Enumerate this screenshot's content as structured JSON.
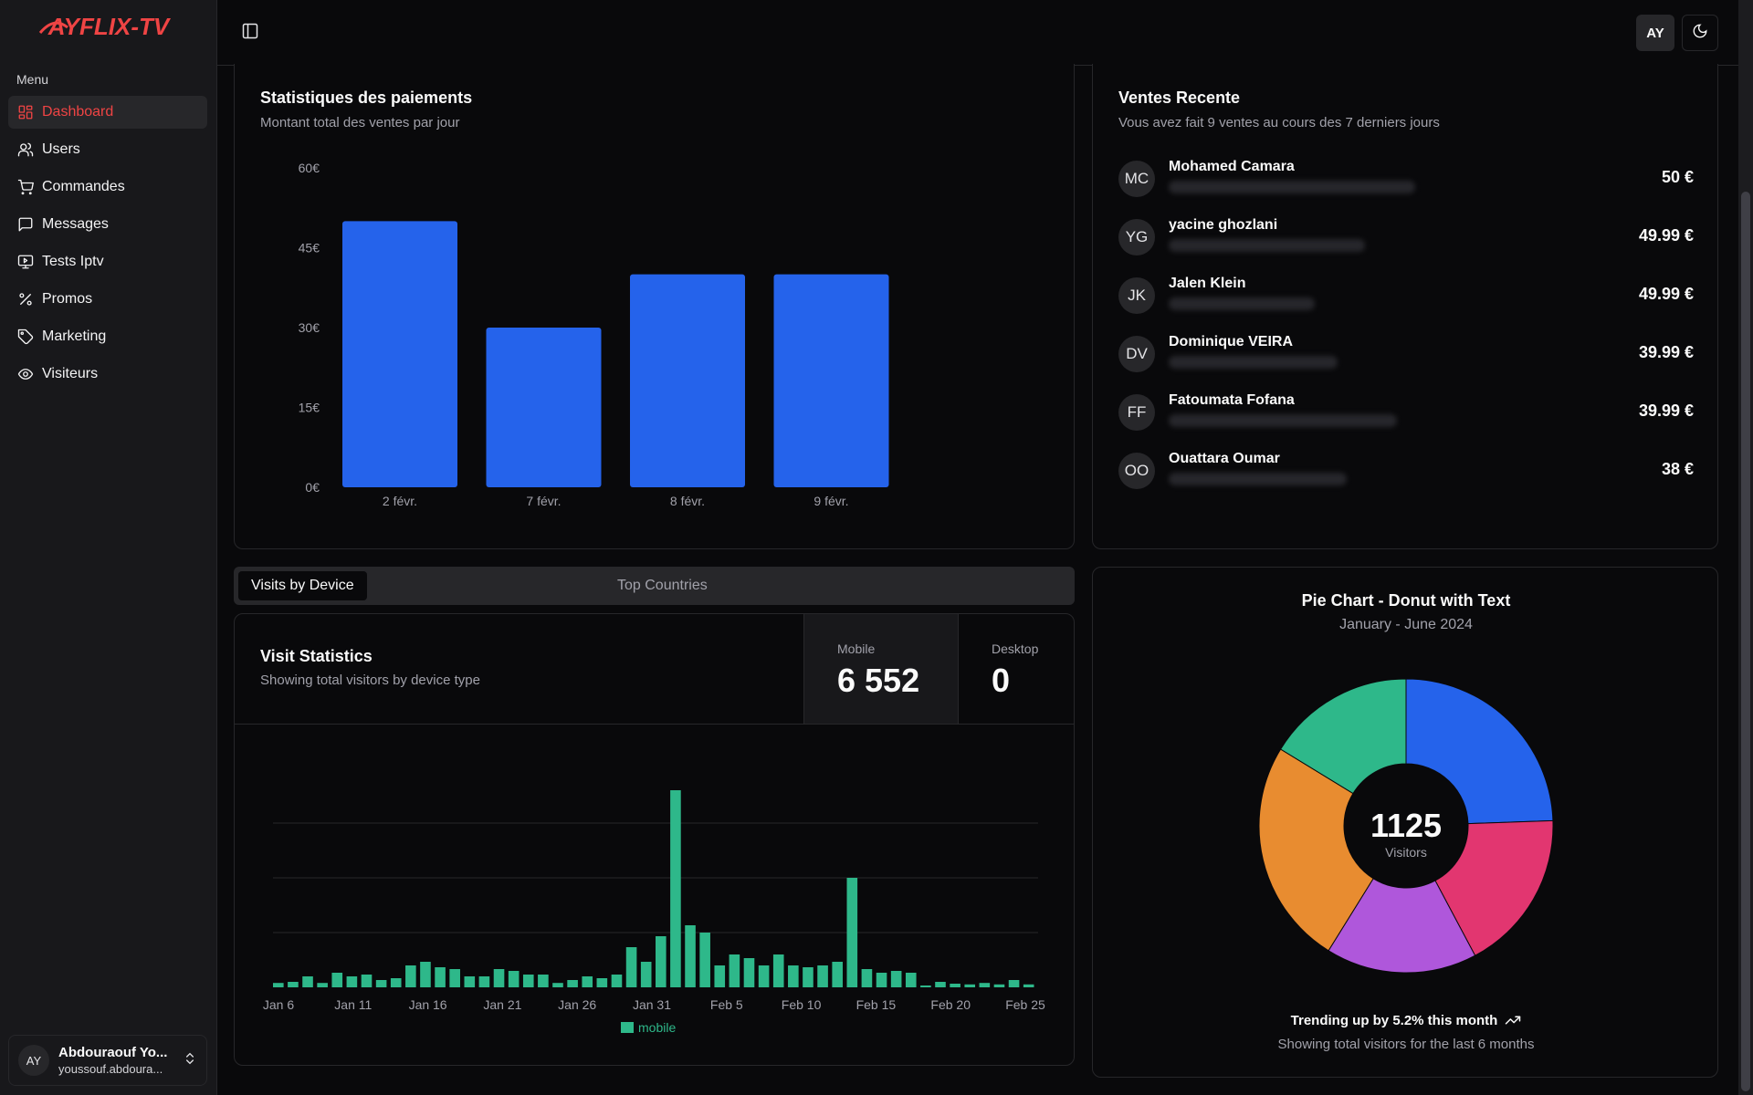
{
  "app": {
    "logo_text": "AYFLIX-TV",
    "logo_color": "#ef4444"
  },
  "sidebar": {
    "menu_title": "Menu",
    "items": [
      {
        "label": "Dashboard",
        "icon": "dashboard-icon",
        "active": true
      },
      {
        "label": "Users",
        "icon": "users-icon"
      },
      {
        "label": "Commandes",
        "icon": "cart-icon"
      },
      {
        "label": "Messages",
        "icon": "message-icon"
      },
      {
        "label": "Tests Iptv",
        "icon": "monitor-icon"
      },
      {
        "label": "Promos",
        "icon": "percent-icon"
      },
      {
        "label": "Marketing",
        "icon": "tag-icon"
      },
      {
        "label": "Visiteurs",
        "icon": "eye-icon"
      }
    ],
    "user": {
      "initials": "AY",
      "name": "Abdouraouf Yo...",
      "email": "youssouf.abdoura..."
    }
  },
  "topbar": {
    "avatar": "AY"
  },
  "payments": {
    "title": "Statistiques des paiements",
    "subtitle": "Montant total des ventes par jour",
    "chart_data": {
      "type": "bar",
      "categories": [
        "2 févr.",
        "7 févr.",
        "8 févr.",
        "9 févr."
      ],
      "values": [
        50,
        30,
        40,
        40
      ],
      "ylim": [
        0,
        60
      ],
      "yticks": [
        "0€",
        "15€",
        "30€",
        "45€",
        "60€"
      ],
      "ytick_values": [
        0,
        15,
        30,
        45,
        60
      ],
      "color": "#2563eb",
      "grid": false
    }
  },
  "sales": {
    "title": "Ventes Recente",
    "subtitle": "Vous avez fait 9 ventes au cours des 7 derniers jours",
    "items": [
      {
        "initials": "MC",
        "name": "Mohamed Camara",
        "amount": "50 €"
      },
      {
        "initials": "YG",
        "name": "yacine ghozlani",
        "amount": "49.99 €"
      },
      {
        "initials": "JK",
        "name": "Jalen Klein",
        "amount": "49.99 €"
      },
      {
        "initials": "DV",
        "name": "Dominique VEIRA",
        "amount": "39.99 €"
      },
      {
        "initials": "FF",
        "name": "Fatoumata Fofana",
        "amount": "39.99 €"
      },
      {
        "initials": "OO",
        "name": "Ouattara Oumar",
        "amount": "38 €"
      }
    ]
  },
  "tabs": {
    "device": "Visits by Device",
    "countries": "Top Countries"
  },
  "visits": {
    "title": "Visit Statistics",
    "subtitle": "Showing total visitors by device type",
    "mobile_label": "Mobile",
    "mobile_value": "6 552",
    "desktop_label": "Desktop",
    "desktop_value": "0",
    "chart_data": {
      "type": "bar",
      "series": [
        {
          "name": "mobile",
          "color": "#2eb88a"
        }
      ],
      "xticks": [
        "Jan 6",
        "Jan 11",
        "Jan 16",
        "Jan 21",
        "Jan 26",
        "Jan 31",
        "Feb 5",
        "Feb 10",
        "Feb 15",
        "Feb 20",
        "Feb 25"
      ],
      "start_label": "Jan 6",
      "values": [
        12,
        15,
        30,
        12,
        40,
        30,
        35,
        20,
        25,
        60,
        70,
        55,
        50,
        30,
        30,
        50,
        45,
        35,
        35,
        12,
        20,
        30,
        25,
        35,
        110,
        70,
        140,
        540,
        170,
        150,
        60,
        90,
        80,
        60,
        90,
        60,
        55,
        60,
        70,
        300,
        50,
        40,
        45,
        40,
        5,
        15,
        10,
        8,
        12,
        8,
        20,
        8
      ],
      "ylim": [
        0,
        600
      ],
      "grid": true
    }
  },
  "pie": {
    "title": "Pie Chart - Donut with Text",
    "subtitle": "January - June 2024",
    "center_value": "1125",
    "center_label": "Visitors",
    "footer_trend": "Trending up by 5.2% this month",
    "footer_sub": "Showing total visitors for the last 6 months",
    "chart_data": {
      "type": "pie",
      "slices": [
        {
          "value": 275,
          "color": "#2563eb"
        },
        {
          "value": 200,
          "color": "#e23670"
        },
        {
          "value": 187,
          "color": "#af57db"
        },
        {
          "value": 280,
          "color": "#e88c30"
        },
        {
          "value": 183,
          "color": "#2eb88a"
        }
      ]
    }
  }
}
